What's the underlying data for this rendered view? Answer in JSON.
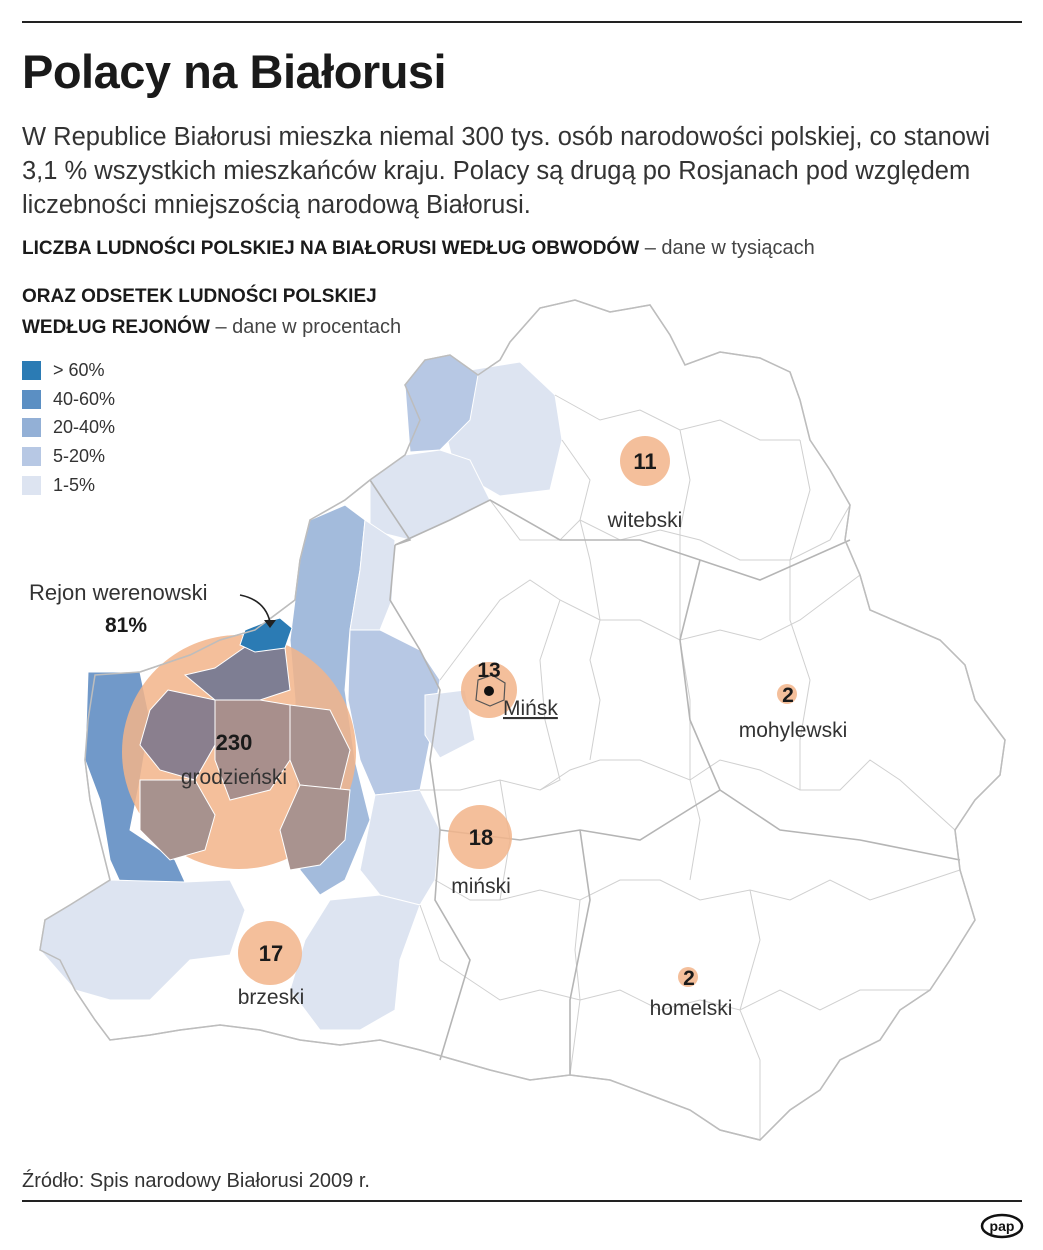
{
  "title": "Polacy na Białorusi",
  "intro": "W Republice Białorusi mieszka niemal 300 tys. osób narodowości polskiej, co stanowi 3,1 % wszystkich mieszkańców kraju. Polacy są drugą po Rosjanach pod względem liczebności mniejszością narodową Białorusi.",
  "subheading1": {
    "bold": "LICZBA LUDNOŚCI POLSKIEJ NA BIAŁORUSI WEDŁUG OBWODÓW",
    "light": " – dane w tysiącach"
  },
  "subheading2": {
    "bold_line1": "ORAZ ODSETEK LUDNOŚCI POLSKIEJ",
    "bold_line2": "WEDŁUG REJONÓW",
    "light": " – dane w procentach"
  },
  "legend": [
    {
      "label": "> 60%",
      "color": "#2b7bb4"
    },
    {
      "label": "40-60%",
      "color": "#5b8fc3"
    },
    {
      "label": "20-40%",
      "color": "#93b0d6"
    },
    {
      "label": "5-20%",
      "color": "#b7c8e4"
    },
    {
      "label": "1-5%",
      "color": "#dde4f1"
    }
  ],
  "regions": [
    {
      "name": "grodzieński",
      "value": "230"
    },
    {
      "name": "witebski",
      "value": "11"
    },
    {
      "name": "Mińsk",
      "value": "13"
    },
    {
      "name": "miński",
      "value": "18"
    },
    {
      "name": "mohylewski",
      "value": "2"
    },
    {
      "name": "brzeski",
      "value": "17"
    },
    {
      "name": "homelski",
      "value": "2"
    }
  ],
  "callout": {
    "name": "Rejon werenowski",
    "value": "81%"
  },
  "source": "Źródło: Spis narodowy Białorusi 2009 r.",
  "logo": "pap",
  "colors": {
    "bubble": "#f2b48a",
    "border": "#c9c9c9",
    "land": "#ffffff"
  }
}
